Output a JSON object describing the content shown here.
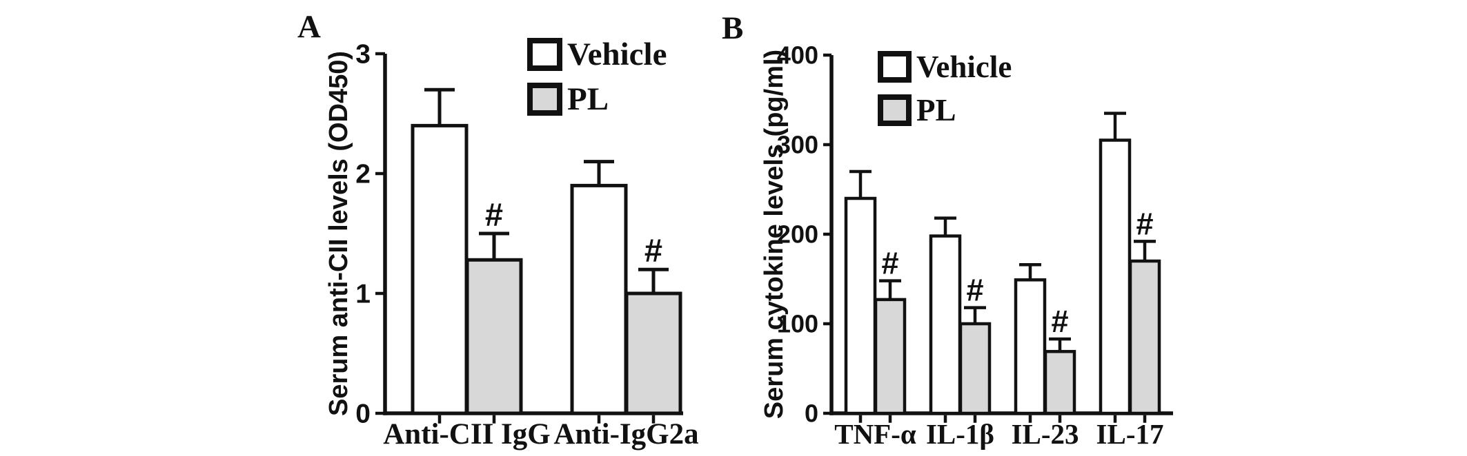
{
  "page": {
    "background": "#ffffff",
    "ink_color": "#111111"
  },
  "chart_data": [
    {
      "panel_label": "A",
      "type": "bar",
      "title": "",
      "xlabel": "",
      "ylabel": "Serum anti-CII levels (OD450)",
      "ylim": [
        0,
        3
      ],
      "yticks": [
        0,
        1,
        2,
        3
      ],
      "grid": false,
      "legend_position": "inside-top-right",
      "significance_marker": "#",
      "categories": [
        "Anti-CII IgG",
        "Anti-IgG2a"
      ],
      "series": [
        {
          "name": "Vehicle",
          "fill": "#ffffff",
          "values": [
            2.4,
            1.9
          ],
          "errors": [
            0.3,
            0.2
          ],
          "sig": [
            "",
            ""
          ]
        },
        {
          "name": "PL",
          "fill": "#d8d8d8",
          "values": [
            1.28,
            1.0
          ],
          "errors": [
            0.22,
            0.2
          ],
          "sig": [
            "#",
            "#"
          ]
        }
      ]
    },
    {
      "panel_label": "B",
      "type": "bar",
      "title": "",
      "xlabel": "",
      "ylabel": "Serum cytokine levels (pg/ml)",
      "ylim": [
        0,
        400
      ],
      "yticks": [
        0,
        100,
        200,
        300,
        400
      ],
      "grid": false,
      "legend_position": "inside-top-right",
      "significance_marker": "#",
      "categories": [
        "TNF-α",
        "IL-1β",
        "IL-23",
        "IL-17"
      ],
      "series": [
        {
          "name": "Vehicle",
          "fill": "#ffffff",
          "values": [
            240,
            198,
            149,
            305
          ],
          "errors": [
            30,
            20,
            17,
            30
          ],
          "sig": [
            "",
            "",
            "",
            ""
          ]
        },
        {
          "name": "PL",
          "fill": "#d8d8d8",
          "values": [
            127,
            100,
            69,
            170
          ],
          "errors": [
            21,
            18,
            14,
            22
          ],
          "sig": [
            "#",
            "#",
            "#",
            "#"
          ]
        }
      ]
    }
  ]
}
